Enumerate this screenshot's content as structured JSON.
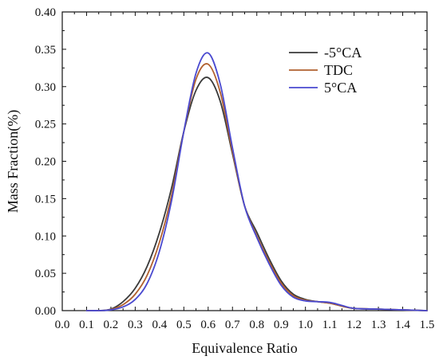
{
  "chart_data": {
    "type": "line",
    "title": "",
    "xlabel": "Equivalence Ratio",
    "ylabel": "Mass Fraction(%)",
    "xlim": [
      0.0,
      1.5
    ],
    "ylim": [
      0.0,
      0.4
    ],
    "x_ticks": [
      "0.0",
      "0.1",
      "0.2",
      "0.3",
      "0.4",
      "0.5",
      "0.6",
      "0.7",
      "0.8",
      "0.9",
      "1.0",
      "1.1",
      "1.2",
      "1.3",
      "1.4",
      "1.5"
    ],
    "y_ticks": [
      "0.00",
      "0.05",
      "0.10",
      "0.15",
      "0.20",
      "0.25",
      "0.30",
      "0.35",
      "0.40"
    ],
    "grid": false,
    "legend": {
      "placement": "top-right"
    },
    "x": [
      0.1,
      0.15,
      0.2,
      0.25,
      0.3,
      0.35,
      0.4,
      0.45,
      0.5,
      0.55,
      0.6,
      0.65,
      0.7,
      0.75,
      0.8,
      0.85,
      0.9,
      0.95,
      1.0,
      1.05,
      1.1,
      1.15,
      1.2,
      1.3,
      1.4,
      1.5
    ],
    "series": [
      {
        "name": "-5°CA",
        "color": "#3a3a3a",
        "values": [
          0.0,
          0.0,
          0.002,
          0.012,
          0.03,
          0.06,
          0.105,
          0.165,
          0.24,
          0.295,
          0.312,
          0.28,
          0.21,
          0.14,
          0.105,
          0.07,
          0.04,
          0.022,
          0.015,
          0.012,
          0.01,
          0.006,
          0.003,
          0.002,
          0.001,
          0.0
        ]
      },
      {
        "name": "TDC",
        "color": "#b0602f",
        "values": [
          0.0,
          0.0,
          0.0015,
          0.008,
          0.022,
          0.048,
          0.092,
          0.155,
          0.24,
          0.31,
          0.33,
          0.292,
          0.213,
          0.14,
          0.1,
          0.066,
          0.037,
          0.02,
          0.014,
          0.012,
          0.01,
          0.006,
          0.003,
          0.002,
          0.001,
          0.0
        ]
      },
      {
        "name": "5°CA",
        "color": "#4a4ad0",
        "values": [
          0.0,
          0.0,
          0.001,
          0.005,
          0.015,
          0.037,
          0.08,
          0.148,
          0.24,
          0.318,
          0.345,
          0.303,
          0.218,
          0.14,
          0.098,
          0.063,
          0.034,
          0.018,
          0.013,
          0.012,
          0.011,
          0.007,
          0.003,
          0.002,
          0.001,
          0.0
        ]
      }
    ]
  }
}
